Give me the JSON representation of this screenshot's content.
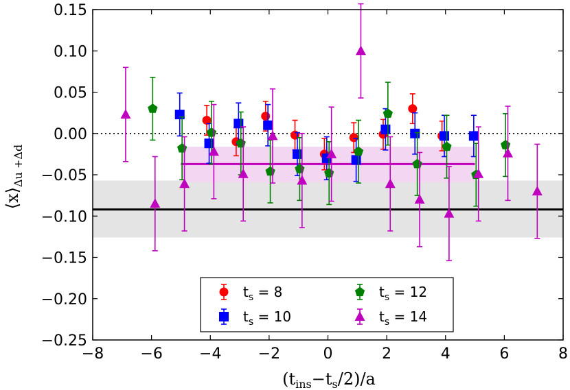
{
  "chart_data": {
    "type": "scatter",
    "title": "",
    "xlabel": "(t_ins − t_s/2)/a",
    "ylabel": "⟨x⟩_Δu+Δd",
    "xlabel_parts": {
      "open": "(t",
      "sub1": "ins",
      "mid": "−t",
      "sub2": "s",
      "close": "/2)/a"
    },
    "ylabel_parts": {
      "main": "⟨x⟩",
      "sub": "Δu +Δd"
    },
    "xlim": [
      -8,
      8
    ],
    "ylim": [
      -0.25,
      0.15
    ],
    "xticks": [
      -8,
      -6,
      -4,
      -2,
      0,
      2,
      4,
      6,
      8
    ],
    "xtick_labels": [
      "−8",
      "−6",
      "−4",
      "−2",
      "0",
      "2",
      "4",
      "6",
      "8"
    ],
    "yticks": [
      -0.25,
      -0.2,
      -0.15,
      -0.1,
      -0.05,
      0.0,
      0.05,
      0.1,
      0.15
    ],
    "ytick_labels": [
      "−0.25",
      "−0.20",
      "−0.15",
      "−0.10",
      "−0.05",
      "0.00",
      "0.05",
      "0.10",
      "0.15"
    ],
    "legend_position": "lower-center",
    "reference_band": {
      "value": -0.092,
      "low": -0.126,
      "high": -0.057,
      "color": "#000000",
      "band_color": "#e4e4e4"
    },
    "zero_line": 0.0,
    "fit": {
      "x_start": -5,
      "x_end": 5,
      "value": -0.037,
      "low": -0.059,
      "high": -0.016,
      "color": "#bf00bf",
      "band_color": "#f2d6f2"
    },
    "series": [
      {
        "name": "t_s = 8",
        "label_main": "t",
        "label_sub": "s",
        "label_rest": " = 8",
        "marker": "circle",
        "color": "#ff0000",
        "points": [
          {
            "x": -4,
            "y": 0.016,
            "err": 0.018
          },
          {
            "x": -3,
            "y": -0.01,
            "err": 0.017
          },
          {
            "x": -2,
            "y": 0.021,
            "err": 0.018
          },
          {
            "x": -1,
            "y": -0.002,
            "err": 0.018
          },
          {
            "x": 0,
            "y": -0.025,
            "err": 0.019
          },
          {
            "x": 1,
            "y": -0.005,
            "err": 0.018
          },
          {
            "x": 2,
            "y": -0.001,
            "err": 0.018
          },
          {
            "x": 3,
            "y": 0.03,
            "err": 0.018
          },
          {
            "x": 4,
            "y": -0.003,
            "err": 0.018
          }
        ]
      },
      {
        "name": "t_s = 10",
        "label_main": "t",
        "label_sub": "s",
        "label_rest": " = 10",
        "marker": "square",
        "color": "#0000ff",
        "points": [
          {
            "x": -5,
            "y": 0.023,
            "err": 0.026
          },
          {
            "x": -4,
            "y": -0.012,
            "err": 0.024
          },
          {
            "x": -3,
            "y": 0.012,
            "err": 0.025
          },
          {
            "x": -2,
            "y": 0.01,
            "err": 0.025
          },
          {
            "x": -1,
            "y": -0.025,
            "err": 0.026
          },
          {
            "x": 0,
            "y": -0.03,
            "err": 0.026
          },
          {
            "x": 1,
            "y": -0.032,
            "err": 0.026
          },
          {
            "x": 2,
            "y": 0.005,
            "err": 0.025
          },
          {
            "x": 3,
            "y": 0.0,
            "err": 0.025
          },
          {
            "x": 4,
            "y": -0.003,
            "err": 0.025
          },
          {
            "x": 5,
            "y": -0.003,
            "err": 0.025
          }
        ]
      },
      {
        "name": "t_s = 12",
        "label_main": "t",
        "label_sub": "s",
        "label_rest": " = 12",
        "marker": "pentagon",
        "color": "#008000",
        "points": [
          {
            "x": -6,
            "y": 0.03,
            "err": 0.038
          },
          {
            "x": -5,
            "y": -0.018,
            "err": 0.038
          },
          {
            "x": -4,
            "y": 0.001,
            "err": 0.038
          },
          {
            "x": -3,
            "y": -0.012,
            "err": 0.038
          },
          {
            "x": -2,
            "y": -0.046,
            "err": 0.038
          },
          {
            "x": -1,
            "y": -0.043,
            "err": 0.038
          },
          {
            "x": 0,
            "y": -0.048,
            "err": 0.038
          },
          {
            "x": 1,
            "y": -0.022,
            "err": 0.038
          },
          {
            "x": 2,
            "y": 0.024,
            "err": 0.038
          },
          {
            "x": 3,
            "y": -0.037,
            "err": 0.038
          },
          {
            "x": 4,
            "y": -0.016,
            "err": 0.038
          },
          {
            "x": 5,
            "y": -0.05,
            "err": 0.038
          },
          {
            "x": 6,
            "y": -0.014,
            "err": 0.038
          }
        ]
      },
      {
        "name": "t_s = 14",
        "label_main": "t",
        "label_sub": "s",
        "label_rest": " = 14",
        "marker": "triangle",
        "color": "#bf00bf",
        "points": [
          {
            "x": -7,
            "y": 0.023,
            "err": 0.057
          },
          {
            "x": -6,
            "y": -0.085,
            "err": 0.057
          },
          {
            "x": -5,
            "y": -0.061,
            "err": 0.057
          },
          {
            "x": -4,
            "y": -0.022,
            "err": 0.057
          },
          {
            "x": -3,
            "y": -0.049,
            "err": 0.057
          },
          {
            "x": -2,
            "y": -0.003,
            "err": 0.057
          },
          {
            "x": -1,
            "y": -0.057,
            "err": 0.057
          },
          {
            "x": 0,
            "y": -0.025,
            "err": 0.057
          },
          {
            "x": 1,
            "y": 0.1,
            "err": 0.057
          },
          {
            "x": 2,
            "y": -0.061,
            "err": 0.057
          },
          {
            "x": 3,
            "y": -0.08,
            "err": 0.057
          },
          {
            "x": 4,
            "y": -0.097,
            "err": 0.057
          },
          {
            "x": 5,
            "y": -0.049,
            "err": 0.057
          },
          {
            "x": 6,
            "y": -0.024,
            "err": 0.057
          },
          {
            "x": 7,
            "y": -0.07,
            "err": 0.057
          }
        ]
      }
    ]
  }
}
